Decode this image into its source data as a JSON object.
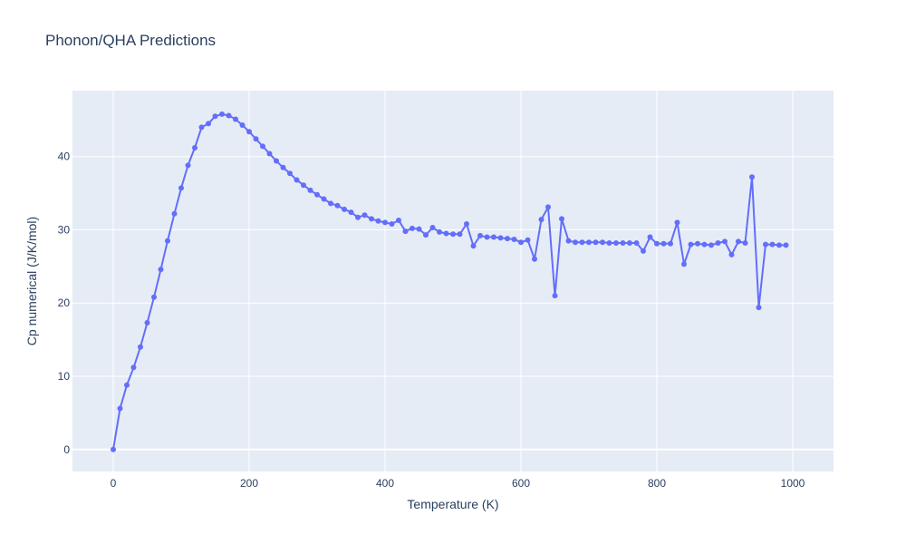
{
  "chart_data": {
    "type": "line",
    "title": "Phonon/QHA Predictions",
    "xlabel": "Temperature (K)",
    "ylabel": "Cp numerical (J/K/mol)",
    "xlim": [
      -60,
      1060
    ],
    "ylim": [
      -3,
      49
    ],
    "x_ticks": [
      0,
      200,
      400,
      600,
      800,
      1000
    ],
    "y_ticks": [
      0,
      10,
      20,
      30,
      40
    ],
    "grid": true,
    "colors": {
      "line": "#636efa",
      "plot_bg": "#e5ecf6",
      "grid": "#ffffff"
    },
    "series": [
      {
        "mode": "lines+markers",
        "x": [
          0,
          10,
          20,
          30,
          40,
          50,
          60,
          70,
          80,
          90,
          100,
          110,
          120,
          130,
          140,
          150,
          160,
          170,
          180,
          190,
          200,
          210,
          220,
          230,
          240,
          250,
          260,
          270,
          280,
          290,
          300,
          310,
          320,
          330,
          340,
          350,
          360,
          370,
          380,
          390,
          400,
          410,
          420,
          430,
          440,
          450,
          460,
          470,
          480,
          490,
          500,
          510,
          520,
          530,
          540,
          550,
          560,
          570,
          580,
          590,
          600,
          610,
          620,
          630,
          640,
          650,
          660,
          670,
          680,
          690,
          700,
          710,
          720,
          730,
          740,
          750,
          760,
          770,
          780,
          790,
          800,
          810,
          820,
          830,
          840,
          850,
          860,
          870,
          880,
          890,
          900,
          910,
          920,
          930,
          940,
          950,
          960,
          970,
          980,
          990
        ],
        "y": [
          0.0,
          5.6,
          8.8,
          11.2,
          14.0,
          17.3,
          20.8,
          24.6,
          28.5,
          32.2,
          35.7,
          38.8,
          41.2,
          44.0,
          44.5,
          45.5,
          45.8,
          45.6,
          45.1,
          44.3,
          43.4,
          42.4,
          41.4,
          40.4,
          39.4,
          38.5,
          37.7,
          36.8,
          36.1,
          35.4,
          34.8,
          34.2,
          33.6,
          33.3,
          32.8,
          32.4,
          31.7,
          32.0,
          31.5,
          31.2,
          31.0,
          30.8,
          31.3,
          29.8,
          30.2,
          30.1,
          29.3,
          30.3,
          29.7,
          29.5,
          29.4,
          29.4,
          30.8,
          27.8,
          29.2,
          29.0,
          29.0,
          28.9,
          28.8,
          28.7,
          28.3,
          28.6,
          26.0,
          31.4,
          33.1,
          21.0,
          31.5,
          28.5,
          28.3,
          28.3,
          28.3,
          28.3,
          28.3,
          28.2,
          28.2,
          28.2,
          28.2,
          28.2,
          27.1,
          29.0,
          28.1,
          28.1,
          28.1,
          31.0,
          25.3,
          28.0,
          28.1,
          28.0,
          27.9,
          28.2,
          28.4,
          26.6,
          28.4,
          28.2,
          37.2,
          19.4,
          28.0,
          28.0,
          27.9,
          27.9
        ]
      }
    ]
  }
}
